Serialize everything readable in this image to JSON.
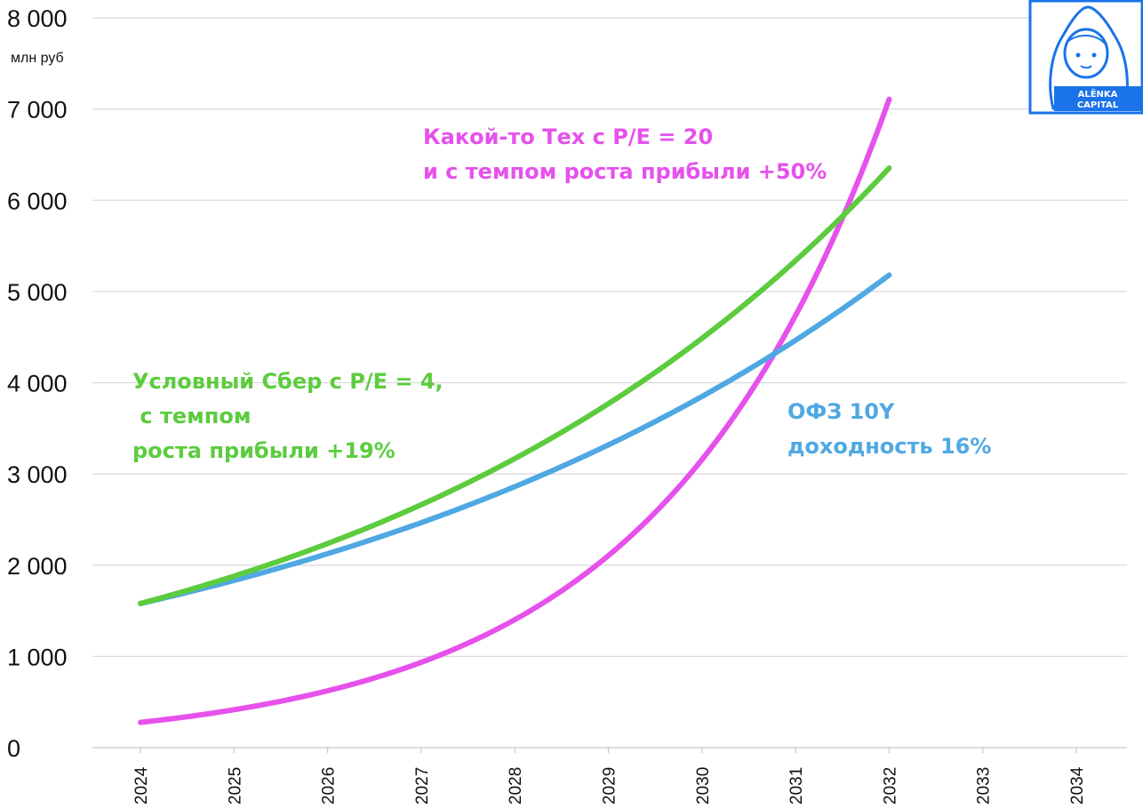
{
  "chart_data": {
    "type": "line",
    "ylabel": "млн руб",
    "ylim": [
      0,
      8000
    ],
    "yticks": [
      0,
      1000,
      2000,
      3000,
      4000,
      5000,
      6000,
      7000,
      8000
    ],
    "ytick_labels": [
      "0",
      "1 000",
      "2 000",
      "3 000",
      "4 000",
      "5 000",
      "6 000",
      "7 000",
      "8 000"
    ],
    "x": [
      2024,
      2025,
      2026,
      2027,
      2028,
      2029,
      2030,
      2031,
      2032
    ],
    "x_tick_labels": [
      "2024",
      "2025",
      "2026",
      "2027",
      "2028",
      "2029",
      "2030",
      "2031",
      "2032",
      "2033",
      "2034"
    ],
    "grid": true,
    "series": [
      {
        "name": "Условный Сбер с P/E = 4, с темпом роста прибыли +19%",
        "color": "#5ccc3e",
        "values": [
          1580,
          1880,
          2237,
          2662,
          3168,
          3770,
          4486,
          5339,
          6353
        ]
      },
      {
        "name": "ОФЗ 10Y доходность 16%",
        "color": "#4fa8e2",
        "values": [
          1580,
          1833,
          2126,
          2466,
          2861,
          3319,
          3850,
          4466,
          5180
        ]
      },
      {
        "name": "Какой-то Тех с P/E = 20 и с темпом роста прибыли +50%",
        "color": "#e651ec",
        "values": [
          277,
          416,
          624,
          936,
          1404,
          2106,
          3159,
          4738,
          7107
        ]
      }
    ],
    "annotations": [
      {
        "lines": [
          "Какой-то Тех с P/E = 20",
          "и с темпом роста прибыли +50%"
        ],
        "color": "#e651ec"
      },
      {
        "lines": [
          "Условный Сбер с P/E = 4,",
          " с темпом",
          "роста прибыли +19%"
        ],
        "color": "#5ccc3e"
      },
      {
        "lines": [
          "ОФЗ 10Y",
          "доходность 16%"
        ],
        "color": "#4fa8e2"
      }
    ]
  },
  "logo": {
    "line1": "ALЁNKA",
    "line2": "CAPITAL",
    "color": "#1a73e8"
  }
}
